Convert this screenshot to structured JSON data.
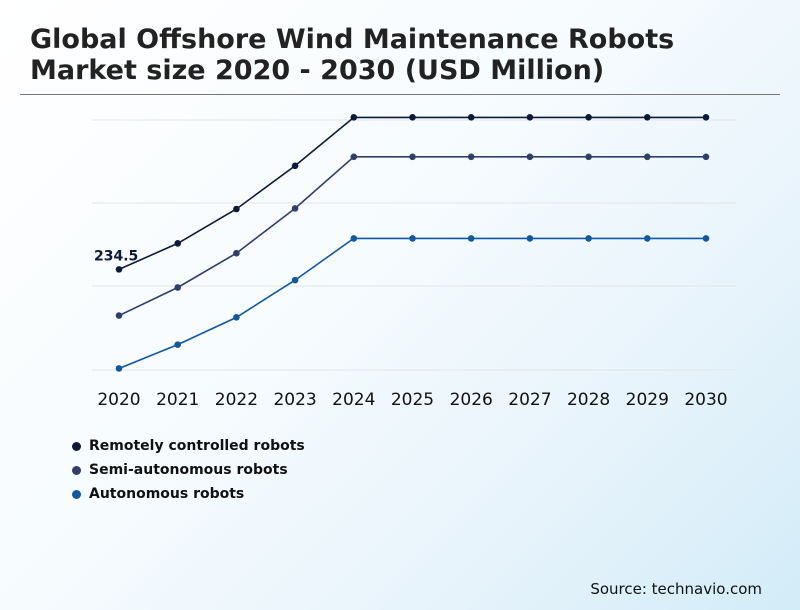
{
  "header": {
    "title_line1": "Global Offshore Wind Maintenance Robots",
    "title_line2": "Market size 2020 - 2030 (USD Million)"
  },
  "source": "Source: technavio.com",
  "chart_data": {
    "type": "line",
    "title": "Global Offshore Wind Maintenance Robots Market size 2020 - 2030 (USD Million)",
    "categories": [
      "2020",
      "2021",
      "2022",
      "2023",
      "2024",
      "2025",
      "2026",
      "2027",
      "2028",
      "2029",
      "2030"
    ],
    "series": [
      {
        "name": "Remotely controlled robots",
        "color": "#0b1a3b",
        "values": [
          234.5,
          263.5,
          301.8,
          350,
          404,
          404,
          404,
          404,
          404,
          404,
          404
        ]
      },
      {
        "name": "Semi-autonomous robots",
        "color": "#2e3f6e",
        "values": [
          183,
          214.3,
          252.5,
          302.5,
          360,
          360,
          360,
          360,
          360,
          360,
          360
        ]
      },
      {
        "name": "Autonomous robots",
        "color": "#0e58a4",
        "values": [
          124,
          150.6,
          181,
          222.5,
          269,
          269,
          269,
          269,
          269,
          269,
          269
        ]
      }
    ],
    "annotations": [
      {
        "series": 0,
        "index": 0,
        "label": "234.5"
      }
    ],
    "ylim": [
      100,
      420
    ],
    "grid": true,
    "legend_position": "bottom-left"
  }
}
